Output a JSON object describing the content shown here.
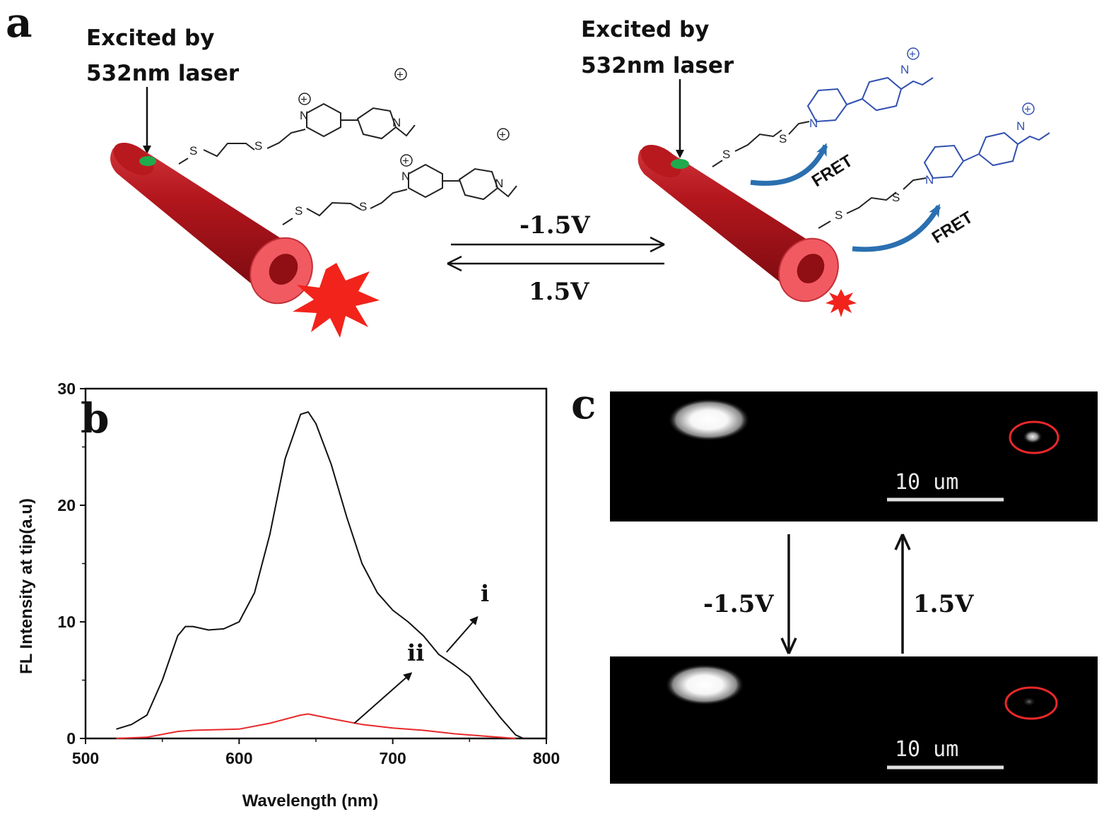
{
  "panel_a": {
    "letter": "a",
    "excite_left": [
      "Excited by",
      "532nm laser"
    ],
    "excite_right": [
      "Excited by",
      "532nm laser"
    ],
    "forward_voltage": "-1.5V",
    "reverse_voltage": "1.5V",
    "fret_upper": "FRET",
    "fret_lower": "FRET",
    "atom_s": "S",
    "atom_n": "N",
    "charge": "+",
    "colors": {
      "tube": "#b0151c",
      "tube_end": "#f25a62",
      "burst": "#f2231b",
      "dot": "#1faa4e",
      "reduced": "#3050b0",
      "fret_arrow": "#2a6fb0"
    }
  },
  "panel_b": {
    "letter": "b"
  },
  "panel_c": {
    "letter": "c",
    "scale_top": "10 um",
    "scale_bottom": "10 um",
    "forward_voltage": "-1.5V",
    "reverse_voltage": "1.5V"
  },
  "chart_data": {
    "type": "line",
    "title": "",
    "xlabel": "Wavelength (nm)",
    "ylabel": "FL Intensity at tip(a.u)",
    "xlim": [
      500,
      800
    ],
    "ylim": [
      0,
      30
    ],
    "xticks": [
      500,
      600,
      700,
      800
    ],
    "yticks": [
      0,
      10,
      20,
      30
    ],
    "grid": false,
    "series": [
      {
        "name": "i",
        "color": "#111111",
        "x": [
          520,
          530,
          540,
          550,
          560,
          565,
          570,
          580,
          590,
          600,
          610,
          620,
          630,
          640,
          645,
          650,
          660,
          670,
          680,
          690,
          700,
          710,
          720,
          730,
          740,
          750,
          760,
          770,
          780,
          785
        ],
        "y": [
          0.8,
          1.2,
          2.0,
          5.0,
          8.8,
          9.6,
          9.6,
          9.3,
          9.4,
          10.0,
          12.5,
          17.5,
          24.0,
          27.8,
          28.0,
          27.0,
          23.5,
          19.0,
          15.0,
          12.5,
          11.0,
          10.0,
          8.8,
          7.2,
          6.3,
          5.3,
          3.5,
          1.8,
          0.3,
          0.0
        ]
      },
      {
        "name": "ii",
        "color": "#e8282a",
        "x": [
          520,
          540,
          560,
          570,
          600,
          620,
          640,
          645,
          660,
          680,
          700,
          720,
          740,
          760,
          780
        ],
        "y": [
          0.0,
          0.1,
          0.6,
          0.7,
          0.8,
          1.3,
          2.0,
          2.1,
          1.7,
          1.2,
          0.9,
          0.7,
          0.4,
          0.2,
          0.0
        ]
      }
    ]
  }
}
